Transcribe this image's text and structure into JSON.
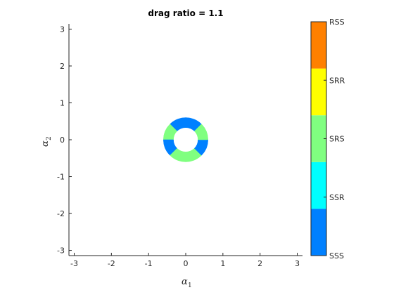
{
  "chart_data": {
    "type": "heatmap",
    "title": "drag ratio = 1.1",
    "xlabel": {
      "symbol": "α",
      "subscript": "1"
    },
    "ylabel": {
      "symbol": "α",
      "subscript": "2"
    },
    "xlim": [
      -3.1416,
      3.1416
    ],
    "ylim": [
      -3.1416,
      3.1416
    ],
    "xticks": [
      -3,
      -2,
      -1,
      0,
      1,
      2,
      3
    ],
    "yticks": [
      -3,
      -2,
      -1,
      0,
      1,
      2,
      3
    ],
    "grid": false,
    "colorbar": {
      "position": "right",
      "categories": [
        "SSS",
        "SSR",
        "SRS",
        "SRR",
        "RSS"
      ],
      "colors": [
        "#0080ff",
        "#00ffff",
        "#80ff80",
        "#ffff00",
        "#ff8000"
      ]
    },
    "region": {
      "shape": "annulus",
      "center": [
        0,
        0
      ],
      "inner_radius": 0.33,
      "outer_radius": 0.6,
      "sectors": [
        {
          "class": "SSS",
          "from_deg": 45,
          "to_deg": 135
        },
        {
          "class": "SRS",
          "from_deg": 135,
          "to_deg": 180
        },
        {
          "class": "SSS",
          "from_deg": 180,
          "to_deg": 225
        },
        {
          "class": "SRS",
          "from_deg": 225,
          "to_deg": 315
        },
        {
          "class": "SSS",
          "from_deg": 315,
          "to_deg": 360
        },
        {
          "class": "SRS",
          "from_deg": 0,
          "to_deg": 45
        }
      ]
    }
  }
}
